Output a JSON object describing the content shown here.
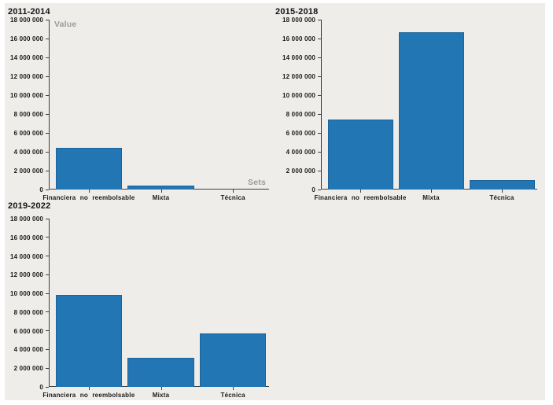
{
  "panel": {
    "background": "#efedea"
  },
  "chart_data": [
    {
      "type": "bar",
      "title": "2011-2014",
      "ylabel": "Value",
      "xlabel": "Sets",
      "categories": [
        "Financiera no reembolsable",
        "Mixta",
        "Técnica"
      ],
      "values": [
        4400000,
        400000,
        0
      ],
      "ylim": [
        0,
        18000000
      ],
      "ytick_step": 2000000,
      "grid": false,
      "legend": "none",
      "bar_color": "#2376b4"
    },
    {
      "type": "bar",
      "title": "2015-2018",
      "categories": [
        "Financiera no reembolsable",
        "Mixta",
        "Técnica"
      ],
      "values": [
        7400000,
        16700000,
        1000000
      ],
      "ylim": [
        0,
        18000000
      ],
      "ytick_step": 2000000,
      "grid": false,
      "legend": "none",
      "bar_color": "#2376b4"
    },
    {
      "type": "bar",
      "title": "2019-2022",
      "categories": [
        "Financiera no reembolsable",
        "Mixta",
        "Técnica"
      ],
      "values": [
        9800000,
        3100000,
        5700000
      ],
      "ylim": [
        0,
        18000000
      ],
      "ytick_step": 2000000,
      "grid": false,
      "legend": "none",
      "bar_color": "#2376b4"
    }
  ]
}
